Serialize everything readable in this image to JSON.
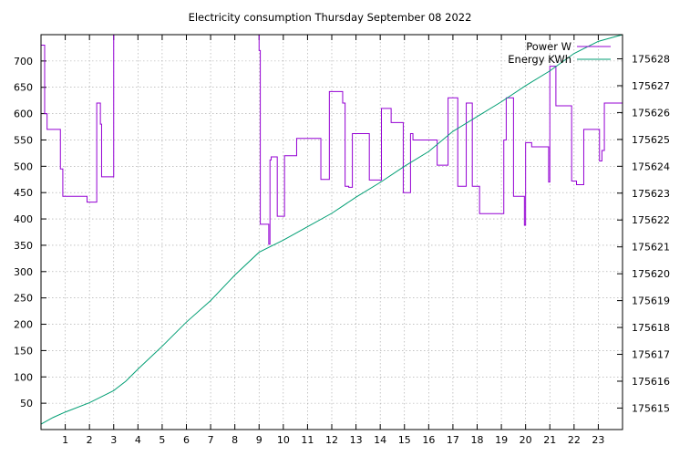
{
  "chart_data": {
    "type": "line",
    "title": "Electricity consumption Thursday September 08 2022",
    "x_ticks": [
      "1",
      "2",
      "3",
      "4",
      "5",
      "6",
      "7",
      "8",
      "9",
      "10",
      "11",
      "12",
      "13",
      "14",
      "15",
      "16",
      "17",
      "18",
      "19",
      "20",
      "21",
      "22",
      "23"
    ],
    "xlim": [
      0,
      24
    ],
    "ylim_left": [
      0,
      750
    ],
    "y_ticks_left": [
      "50",
      "100",
      "150",
      "200",
      "250",
      "300",
      "350",
      "400",
      "450",
      "500",
      "550",
      "600",
      "650",
      "700"
    ],
    "ylim_right": [
      175614.2,
      175628.9
    ],
    "y_ticks_right": [
      "175615",
      "175616",
      "175617",
      "175618",
      "175619",
      "175620",
      "175621",
      "175622",
      "175623",
      "175624",
      "175625",
      "175626",
      "175627",
      "175628"
    ],
    "grid": true,
    "legend_position": "top-right",
    "series": [
      {
        "name": "Power W",
        "axis": "left",
        "color": "#9400d3",
        "points": [
          [
            0,
            730
          ],
          [
            0.15,
            730
          ],
          [
            0.15,
            600
          ],
          [
            0.25,
            600
          ],
          [
            0.25,
            570
          ],
          [
            0.8,
            570
          ],
          [
            0.8,
            495
          ],
          [
            0.9,
            495
          ],
          [
            0.9,
            443
          ],
          [
            1.9,
            443
          ],
          [
            1.9,
            432
          ],
          [
            2.3,
            432
          ],
          [
            2.3,
            620
          ],
          [
            2.45,
            620
          ],
          [
            2.45,
            580
          ],
          [
            2.5,
            580
          ],
          [
            2.5,
            480
          ],
          [
            3,
            480
          ],
          [
            3,
            750
          ],
          [
            3,
            750
          ],
          [
            9,
            750
          ],
          [
            9,
            720
          ],
          [
            9.05,
            720
          ],
          [
            9.05,
            390
          ],
          [
            9.4,
            390
          ],
          [
            9.4,
            352
          ],
          [
            9.45,
            352
          ],
          [
            9.45,
            512
          ],
          [
            9.5,
            512
          ],
          [
            9.5,
            518
          ],
          [
            9.75,
            518
          ],
          [
            9.75,
            405
          ],
          [
            10.05,
            405
          ],
          [
            10.05,
            520
          ],
          [
            10.55,
            520
          ],
          [
            10.55,
            553
          ],
          [
            11.55,
            553
          ],
          [
            11.55,
            475
          ],
          [
            11.9,
            475
          ],
          [
            11.9,
            642
          ],
          [
            12.45,
            642
          ],
          [
            12.45,
            620
          ],
          [
            12.55,
            620
          ],
          [
            12.55,
            462
          ],
          [
            12.7,
            462
          ],
          [
            12.7,
            460
          ],
          [
            12.85,
            460
          ],
          [
            12.85,
            562
          ],
          [
            13.55,
            562
          ],
          [
            13.55,
            474
          ],
          [
            14.05,
            474
          ],
          [
            14.05,
            610
          ],
          [
            14.45,
            610
          ],
          [
            14.45,
            583
          ],
          [
            14.95,
            583
          ],
          [
            14.95,
            450
          ],
          [
            15.25,
            450
          ],
          [
            15.25,
            562
          ],
          [
            15.35,
            562
          ],
          [
            15.35,
            550
          ],
          [
            16.35,
            550
          ],
          [
            16.35,
            502
          ],
          [
            16.8,
            502
          ],
          [
            16.8,
            630
          ],
          [
            17.2,
            630
          ],
          [
            17.2,
            462
          ],
          [
            17.55,
            462
          ],
          [
            17.55,
            620
          ],
          [
            17.8,
            620
          ],
          [
            17.8,
            462
          ],
          [
            18.1,
            462
          ],
          [
            18.1,
            410
          ],
          [
            19.1,
            410
          ],
          [
            19.1,
            550
          ],
          [
            19.2,
            550
          ],
          [
            19.2,
            630
          ],
          [
            19.5,
            630
          ],
          [
            19.5,
            443
          ],
          [
            19.95,
            443
          ],
          [
            19.95,
            388
          ],
          [
            20,
            388
          ],
          [
            20,
            545
          ],
          [
            20.25,
            545
          ],
          [
            20.25,
            537
          ],
          [
            20.95,
            537
          ],
          [
            20.95,
            470
          ],
          [
            21,
            470
          ],
          [
            21,
            690
          ],
          [
            21.25,
            690
          ],
          [
            21.25,
            615
          ],
          [
            21.9,
            615
          ],
          [
            21.9,
            472
          ],
          [
            22.1,
            472
          ],
          [
            22.1,
            465
          ],
          [
            22.4,
            465
          ],
          [
            22.4,
            570
          ],
          [
            23.05,
            570
          ],
          [
            23.05,
            510
          ],
          [
            23.15,
            510
          ],
          [
            23.15,
            530
          ],
          [
            23.25,
            530
          ],
          [
            23.25,
            620
          ],
          [
            24,
            620
          ]
        ]
      },
      {
        "name": "Energy KWh",
        "axis": "right",
        "color": "#009e73",
        "points": [
          [
            0,
            175614.4
          ],
          [
            0.5,
            175614.65
          ],
          [
            1,
            175614.85
          ],
          [
            2,
            175615.2
          ],
          [
            3,
            175615.65
          ],
          [
            3.5,
            175616.0
          ],
          [
            4,
            175616.45
          ],
          [
            5,
            175617.3
          ],
          [
            6,
            175618.2
          ],
          [
            7,
            175619.0
          ],
          [
            8,
            175619.95
          ],
          [
            9,
            175620.8
          ],
          [
            10,
            175621.25
          ],
          [
            11,
            175621.75
          ],
          [
            12,
            175622.25
          ],
          [
            12.5,
            175622.55
          ],
          [
            13,
            175622.85
          ],
          [
            14,
            175623.4
          ],
          [
            15,
            175624.0
          ],
          [
            16,
            175624.55
          ],
          [
            17,
            175625.3
          ],
          [
            18,
            175625.85
          ],
          [
            19,
            175626.4
          ],
          [
            20,
            175627.0
          ],
          [
            21,
            175627.55
          ],
          [
            22,
            175628.2
          ],
          [
            23,
            175628.65
          ],
          [
            24,
            175628.9
          ]
        ]
      }
    ]
  }
}
